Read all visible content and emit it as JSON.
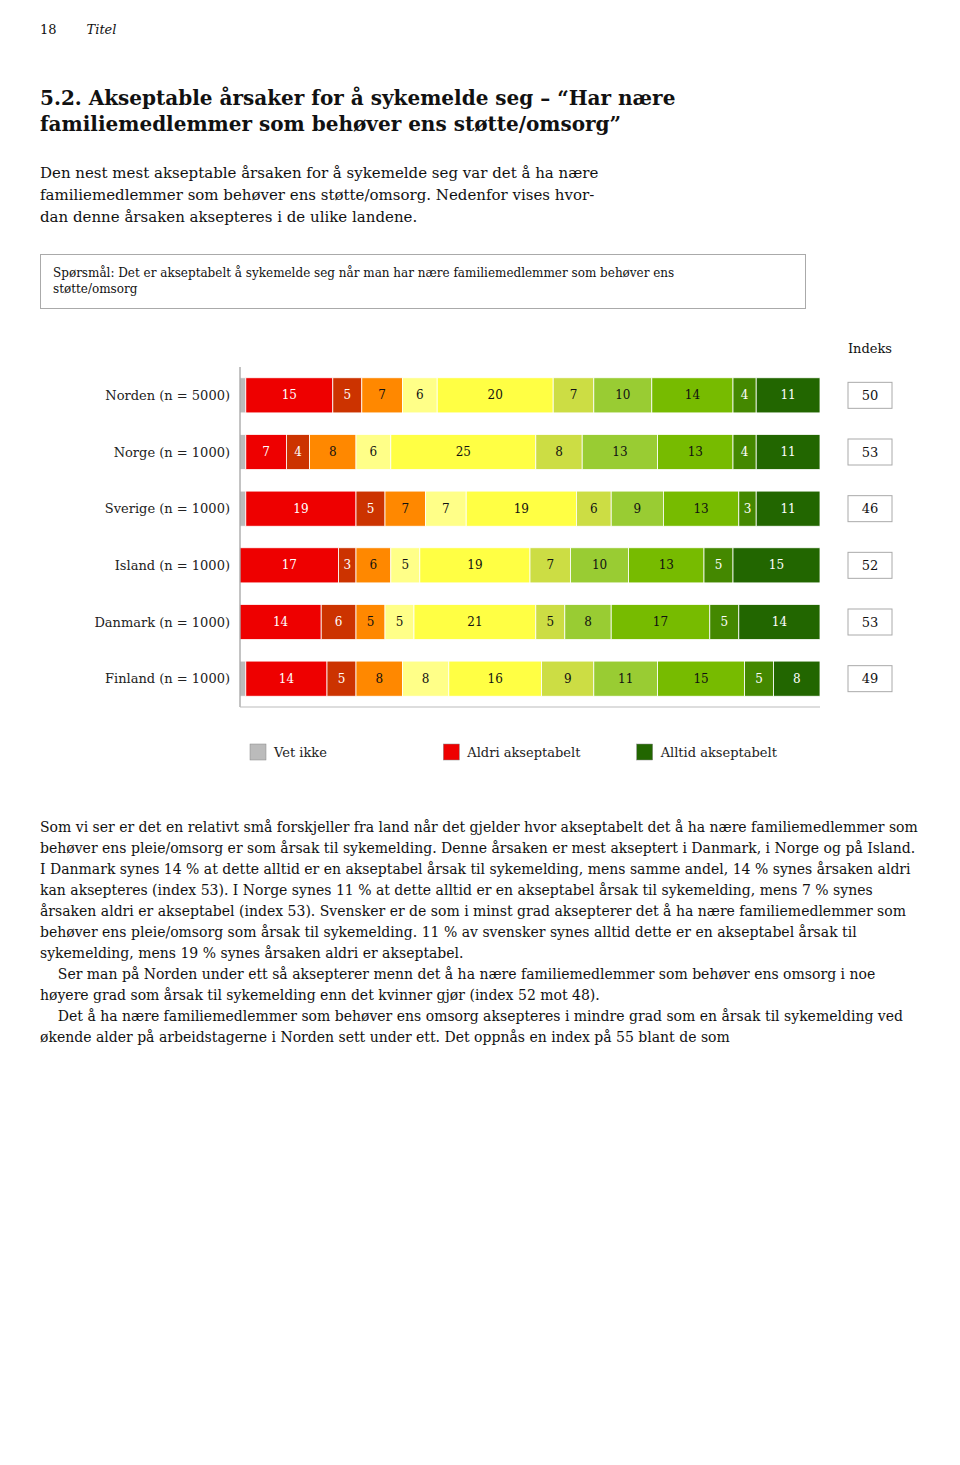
{
  "header_number": "18",
  "header_title": "Titel",
  "section_title": "5.2. Akseptable årsaker for å sykemelde seg – “Har nære\nfamiliemedlemmer som behøver ens støtte/omsorg”",
  "intro_text": "Den nest mest akseptable årsaken for å sykemelde seg var det å ha nære\nfamiliemedlemmer som behøver ens støtte/omsorg. Nedenfor vises hvor-\ndan denne årsaken aksepteres i de ulike landene.",
  "question_text": "Spørsmål: Det er akseptabelt å sykemelde seg når man har nære familiemedlemmer som behøver ens\nstøtte/omsorg",
  "body_text": [
    "Som vi ser er det en relativt små forskjeller fra land når det gjelder hvor akseptabelt det å ha nære familiemedlemmer som behøver ens pleie/omsorg er som årsak til sykemelding. Denne årsaken er mest akseptert i Danmark, i Norge og på Island. I Danmark synes 14 % at dette alltid er en akseptabel årsak til sykemelding, mens samme andel, 14 % synes årsaken aldri kan aksepteres (index 53). I Norge synes 11 % at dette alltid er en akseptabel årsak til sykemelding, mens 7 % synes årsaken aldri er akseptabel (index 53). Svensker er de som i minst grad aksepterer det å ha nære familiemedlemmer som behøver ens pleie/omsorg som årsak til sykemelding. 11 % av svensker synes alltid dette er en akseptabel årsak til sykemelding, mens 19 % synes årsaken aldri er akseptabel.",
    "    Ser man på Norden under ett så aksepterer menn det å ha nære familiemedlemmer som behøver ens omsorg i noe høyere grad som årsak til sykemelding enn det kvinner gjør (index 52 mot 48).",
    "    Det å ha nære familiemedlemmer som behøver ens omsorg aksepteres i mindre grad som en årsak til sykemelding ved økende alder på arbeidstagerne i Norden sett under ett. Det oppnås en index på 55 blant de som"
  ],
  "chart_data": {
    "type": "bar",
    "orientation": "horizontal",
    "stacked": true,
    "data_labels": true,
    "tick_labels": "y",
    "grid": false,
    "legend": "bottom",
    "xlim": [
      0,
      100
    ],
    "categories": [
      "Norden (n = 5000)",
      "Norge (n = 1000)",
      "Sverige (n = 1000)",
      "Island (n = 1000)",
      "Danmark (n = 1000)",
      "Finland (n = 1000)"
    ],
    "series": [
      {
        "name": "Vet ikke",
        "color": "#bbbbbb",
        "values": [
          1,
          1,
          1,
          0,
          0,
          1
        ]
      },
      {
        "name": "Aldri akseptabelt",
        "color": "#ee0000",
        "values": [
          15,
          7,
          19,
          17,
          14,
          14
        ]
      },
      {
        "color": "#cc3300",
        "values": [
          5,
          4,
          5,
          3,
          6,
          5
        ]
      },
      {
        "color": "#ff8800",
        "values": [
          7,
          8,
          7,
          6,
          5,
          8
        ]
      },
      {
        "color": "#ffff88",
        "values": [
          6,
          6,
          7,
          5,
          5,
          8
        ]
      },
      {
        "color": "#ffff44",
        "values": [
          20,
          25,
          19,
          19,
          21,
          16
        ]
      },
      {
        "color": "#ccdd44",
        "values": [
          7,
          8,
          6,
          7,
          5,
          9
        ]
      },
      {
        "color": "#99cc33",
        "values": [
          10,
          13,
          9,
          10,
          8,
          11
        ]
      },
      {
        "color": "#77bb00",
        "values": [
          14,
          13,
          13,
          13,
          17,
          15
        ]
      },
      {
        "color": "#448800",
        "values": [
          4,
          4,
          3,
          5,
          5,
          5
        ]
      },
      {
        "name": "Alltid akseptabelt",
        "color": "#226600",
        "values": [
          11,
          11,
          11,
          15,
          14,
          8
        ]
      }
    ],
    "index_label": "Indeks",
    "index_values": [
      50,
      53,
      46,
      52,
      53,
      49
    ]
  }
}
